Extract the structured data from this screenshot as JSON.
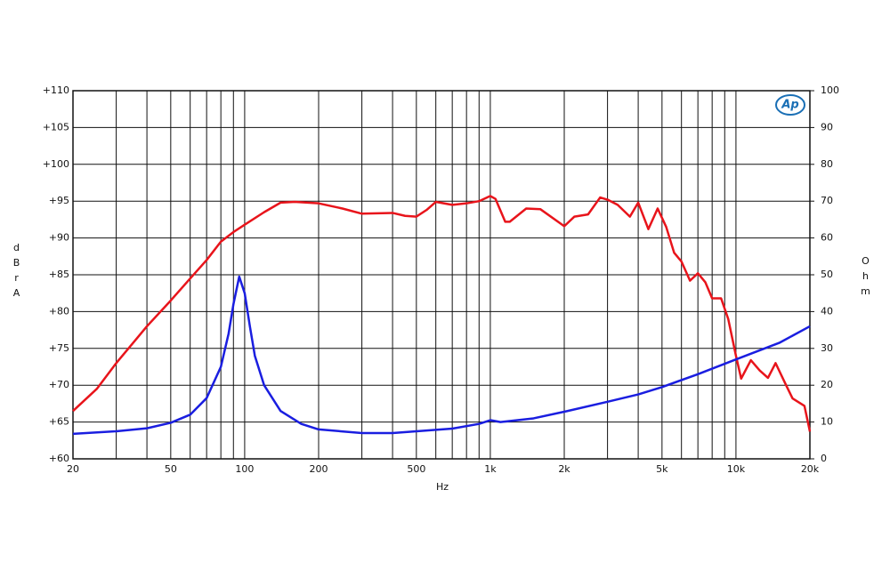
{
  "chart_data": {
    "type": "line",
    "log_x": true,
    "grid": true,
    "x_label": "Hz",
    "y_label": "dBrA",
    "y2_label": "Ohm",
    "logo_text": "Ap",
    "xlim": [
      20,
      20000
    ],
    "xticks": [
      20,
      50,
      100,
      200,
      500,
      {
        "value": 1000,
        "label": "1k"
      },
      {
        "value": 2000,
        "label": "2k"
      },
      {
        "value": 5000,
        "label": "5k"
      },
      {
        "value": 10000,
        "label": "10k"
      },
      {
        "value": 20000,
        "label": "20k"
      }
    ],
    "ylim": [
      60,
      110
    ],
    "yticks": [
      {
        "value": 60,
        "label": "+60"
      },
      {
        "value": 65,
        "label": "+65"
      },
      {
        "value": 70,
        "label": "+70"
      },
      {
        "value": 75,
        "label": "+75"
      },
      {
        "value": 80,
        "label": "+80"
      },
      {
        "value": 85,
        "label": "+85"
      },
      {
        "value": 90,
        "label": "+90"
      },
      {
        "value": 95,
        "label": "+95"
      },
      {
        "value": 100,
        "label": "+100"
      },
      {
        "value": 105,
        "label": "+105"
      },
      {
        "value": 110,
        "label": "+110"
      }
    ],
    "y2lim": [
      0,
      100
    ],
    "y2ticks": [
      0,
      10,
      20,
      30,
      40,
      50,
      60,
      70,
      80,
      90,
      100
    ],
    "series": [
      {
        "color": "#e8141b",
        "x": [
          20,
          25,
          30,
          40,
          50,
          60,
          70,
          80,
          90,
          100,
          120,
          140,
          160,
          200,
          250,
          300,
          400,
          450,
          500,
          550,
          600,
          700,
          800,
          900,
          1000,
          1050,
          1150,
          1200,
          1400,
          1600,
          2000,
          2200,
          2500,
          2800,
          3000,
          3300,
          3700,
          4000,
          4400,
          4800,
          5200,
          5600,
          6000,
          6500,
          7000,
          7500,
          8000,
          8700,
          9300,
          10000,
          10500,
          11500,
          12500,
          13500,
          14500,
          16000,
          17000,
          19000,
          20000
        ],
        "values": [
          66.5,
          69.5,
          73,
          78,
          81.5,
          84.5,
          87,
          89.5,
          90.8,
          91.8,
          93.5,
          94.8,
          94.9,
          94.7,
          94,
          93.3,
          93.4,
          93,
          92.9,
          93.8,
          94.9,
          94.5,
          94.7,
          95,
          95.7,
          95.3,
          92.2,
          92.2,
          94,
          93.9,
          91.6,
          92.9,
          93.2,
          95.5,
          95.2,
          94.5,
          92.9,
          94.8,
          91.2,
          94,
          91.5,
          88,
          86.8,
          84.2,
          85.2,
          84,
          81.8,
          81.8,
          79,
          74,
          70.9,
          73.4,
          72,
          71,
          73,
          70,
          68.2,
          67.2,
          63.7
        ]
      },
      {
        "color": "#1a1ee0",
        "axis": "y2",
        "x": [
          20,
          30,
          40,
          50,
          60,
          70,
          80,
          86,
          90,
          95,
          100,
          105,
          110,
          120,
          140,
          170,
          200,
          300,
          400,
          500,
          700,
          900,
          1000,
          1100,
          1500,
          2000,
          3000,
          4000,
          5000,
          7000,
          10000,
          15000,
          20000
        ],
        "values": [
          6.8,
          7.5,
          8.3,
          9.8,
          12,
          16.5,
          25,
          34,
          42,
          49.5,
          45,
          36,
          28,
          20,
          13,
          9.5,
          8,
          7,
          7,
          7.5,
          8.2,
          9.5,
          10.5,
          10,
          11,
          12.8,
          15.5,
          17.5,
          19.5,
          23,
          27,
          31.5,
          36
        ]
      }
    ]
  }
}
